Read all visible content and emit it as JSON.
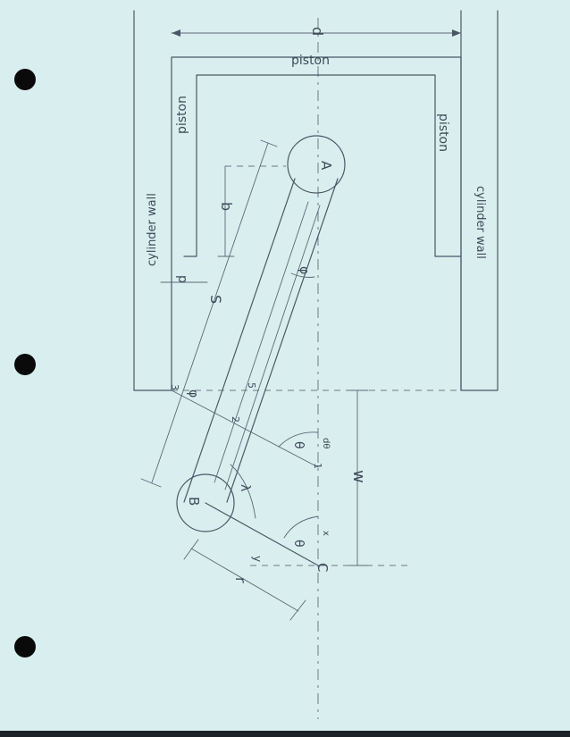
{
  "labels": {
    "piston_top": "piston",
    "piston_left": "piston",
    "piston_right": "piston",
    "cylinder_wall_left": "cylinder wall",
    "cylinder_wall_right": "cylinder wall",
    "dim_d": "d",
    "dim_b": "b",
    "dim_p": "p",
    "dim_s": "S",
    "dim_w": "w",
    "dim_r": "r",
    "point_a": "A",
    "point_b": "B",
    "point_c": "C",
    "angle_phi_top": "φ",
    "angle_phi_bottom": "φ",
    "angle_theta_mid": "θ",
    "angle_theta_low": "θ",
    "angle_lambda": "λ",
    "d_theta": "dθ",
    "x_mark": "x",
    "y_mark": "y",
    "num_1": "1",
    "num_2": "2",
    "num_3": "3",
    "num_5": "5"
  },
  "colors": {
    "paper": "#d9efef",
    "ink": "#4a5866",
    "punch_hole": "#0a0a0a"
  }
}
